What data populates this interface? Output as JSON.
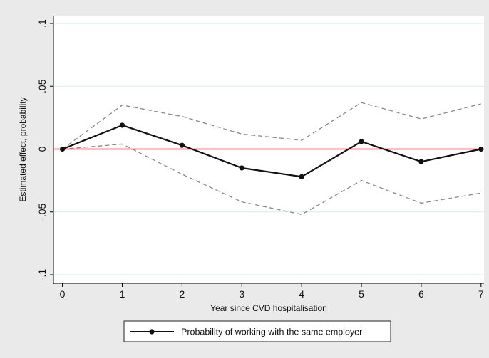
{
  "chart_data": {
    "type": "line",
    "title": "",
    "xlabel": "Year since CVD hospitalisation",
    "ylabel": "Estimated effect, probability",
    "x": [
      0,
      1,
      2,
      3,
      4,
      5,
      6,
      7
    ],
    "x_tick_labels": [
      "0",
      "1",
      "2",
      "3",
      "4",
      "5",
      "6",
      "7"
    ],
    "xlim": [
      -0.15,
      7.05
    ],
    "ylim": [
      -0.1,
      0.1
    ],
    "y_ticks": [
      0.1,
      0.05,
      0,
      -0.05,
      -0.1
    ],
    "y_tick_labels": [
      ".1",
      ".05",
      "0",
      "-.05",
      "-.1"
    ],
    "grid": true,
    "legend_position": "bottom",
    "series": [
      {
        "name": "Probability of working with the same employer",
        "role": "estimate",
        "values": [
          0.0,
          0.019,
          0.003,
          -0.015,
          -0.022,
          0.006,
          -0.01,
          0.0
        ],
        "color": "#111111",
        "style": "solid-with-markers"
      },
      {
        "role": "upper-ci",
        "values": [
          0.0,
          0.035,
          0.026,
          0.012,
          0.007,
          0.037,
          0.024,
          0.036
        ],
        "color": "#888888",
        "style": "dashed"
      },
      {
        "role": "lower-ci",
        "values": [
          0.0,
          0.004,
          -0.02,
          -0.042,
          -0.052,
          -0.025,
          -0.043,
          -0.035
        ],
        "color": "#888888",
        "style": "dashed"
      }
    ],
    "reference_line": {
      "y": 0,
      "color": "#cc2233"
    },
    "colors": {
      "background": "#eaeaea",
      "plot_background": "#ffffff",
      "gridline": "#dcebeb",
      "axis": "#000000"
    }
  }
}
